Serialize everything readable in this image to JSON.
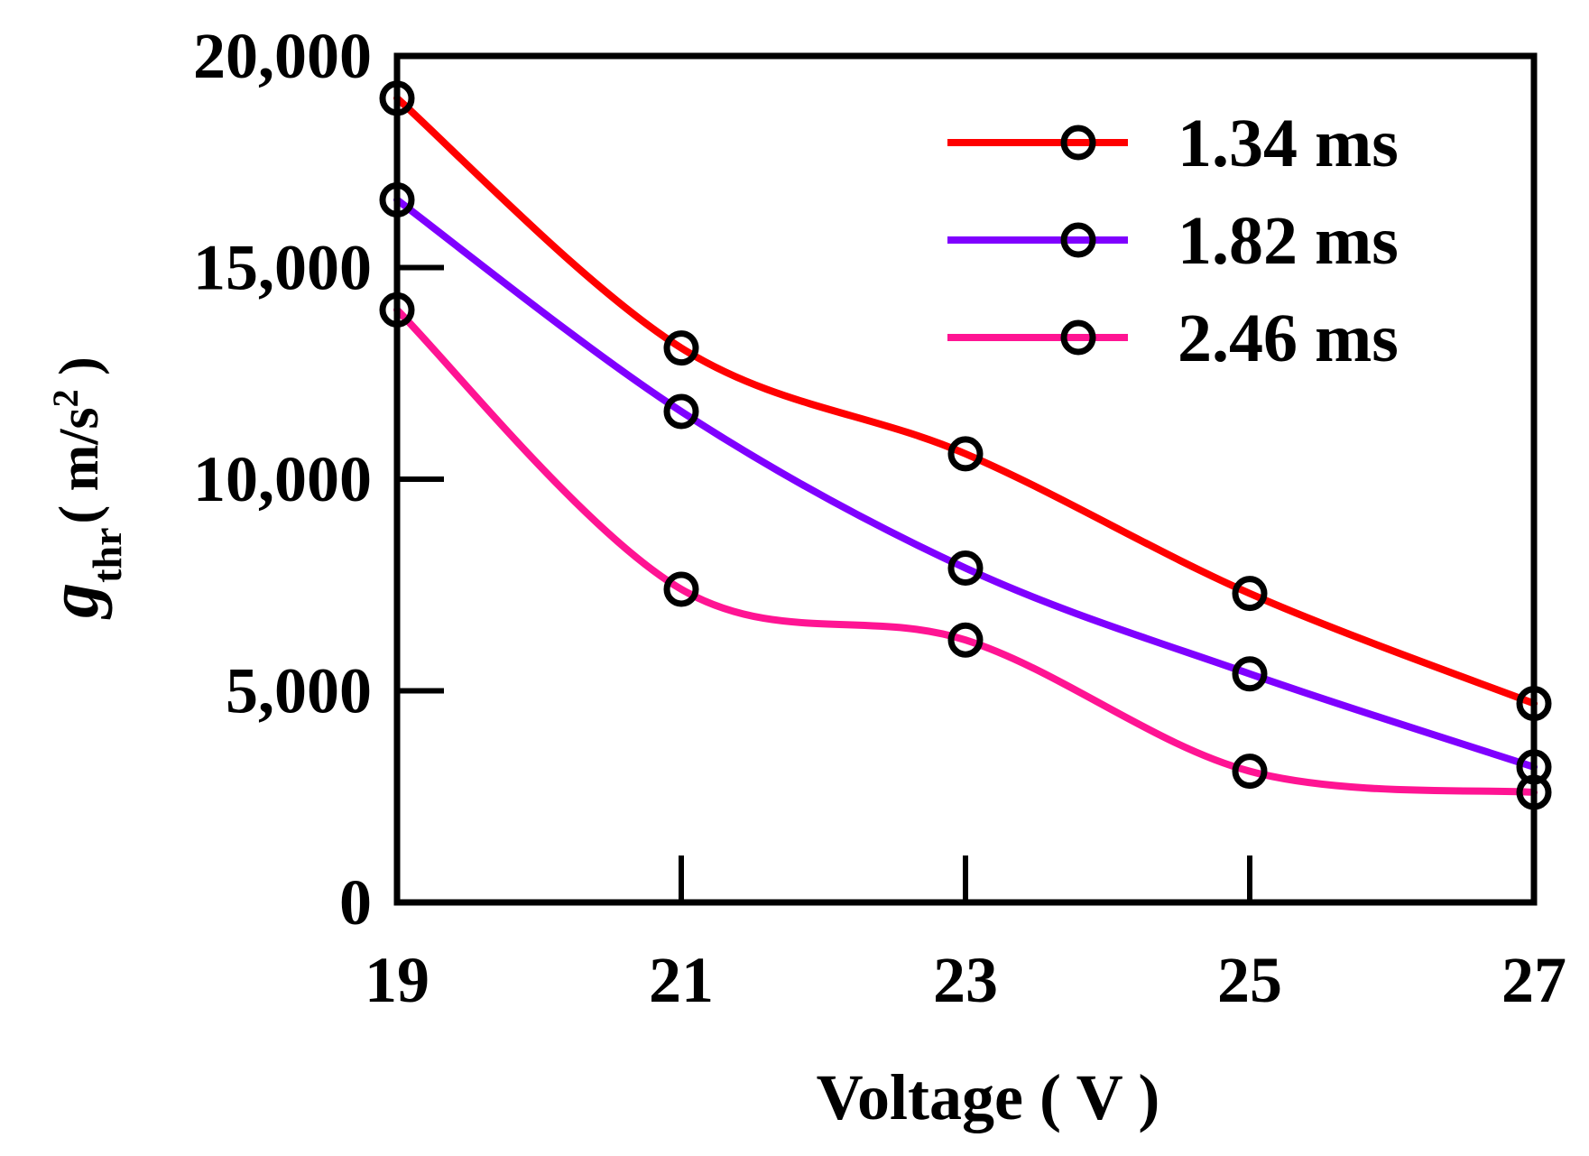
{
  "chart_data": {
    "type": "line",
    "title": "",
    "xlabel": "Voltage ( V )",
    "ylabel": {
      "symbol": "g",
      "subscript": "thr",
      "units_prefix": "( m/s",
      "units_sup": "2",
      "units_suffix": " )"
    },
    "x": [
      19,
      21,
      23,
      25,
      27
    ],
    "xlim": [
      19,
      27
    ],
    "ylim": [
      0,
      20000
    ],
    "xticks": [
      19,
      21,
      23,
      25,
      27
    ],
    "yticks": [
      0,
      5000,
      10000,
      15000,
      20000
    ],
    "ytick_labels": [
      "0",
      "5,000",
      "10,000",
      "15,000",
      "20,000"
    ],
    "grid": false,
    "legend_position": "top-right",
    "marker": "open-circle",
    "series": [
      {
        "name": "1.34 ms",
        "color": "#ff0000",
        "values": [
          19000,
          13100,
          10600,
          7300,
          4700
        ]
      },
      {
        "name": "1.82 ms",
        "color": "#7f00ff",
        "values": [
          16600,
          11600,
          7900,
          5400,
          3200
        ]
      },
      {
        "name": "2.46 ms",
        "color": "#ff1493",
        "values": [
          14000,
          7400,
          6200,
          3100,
          2600
        ]
      }
    ]
  }
}
